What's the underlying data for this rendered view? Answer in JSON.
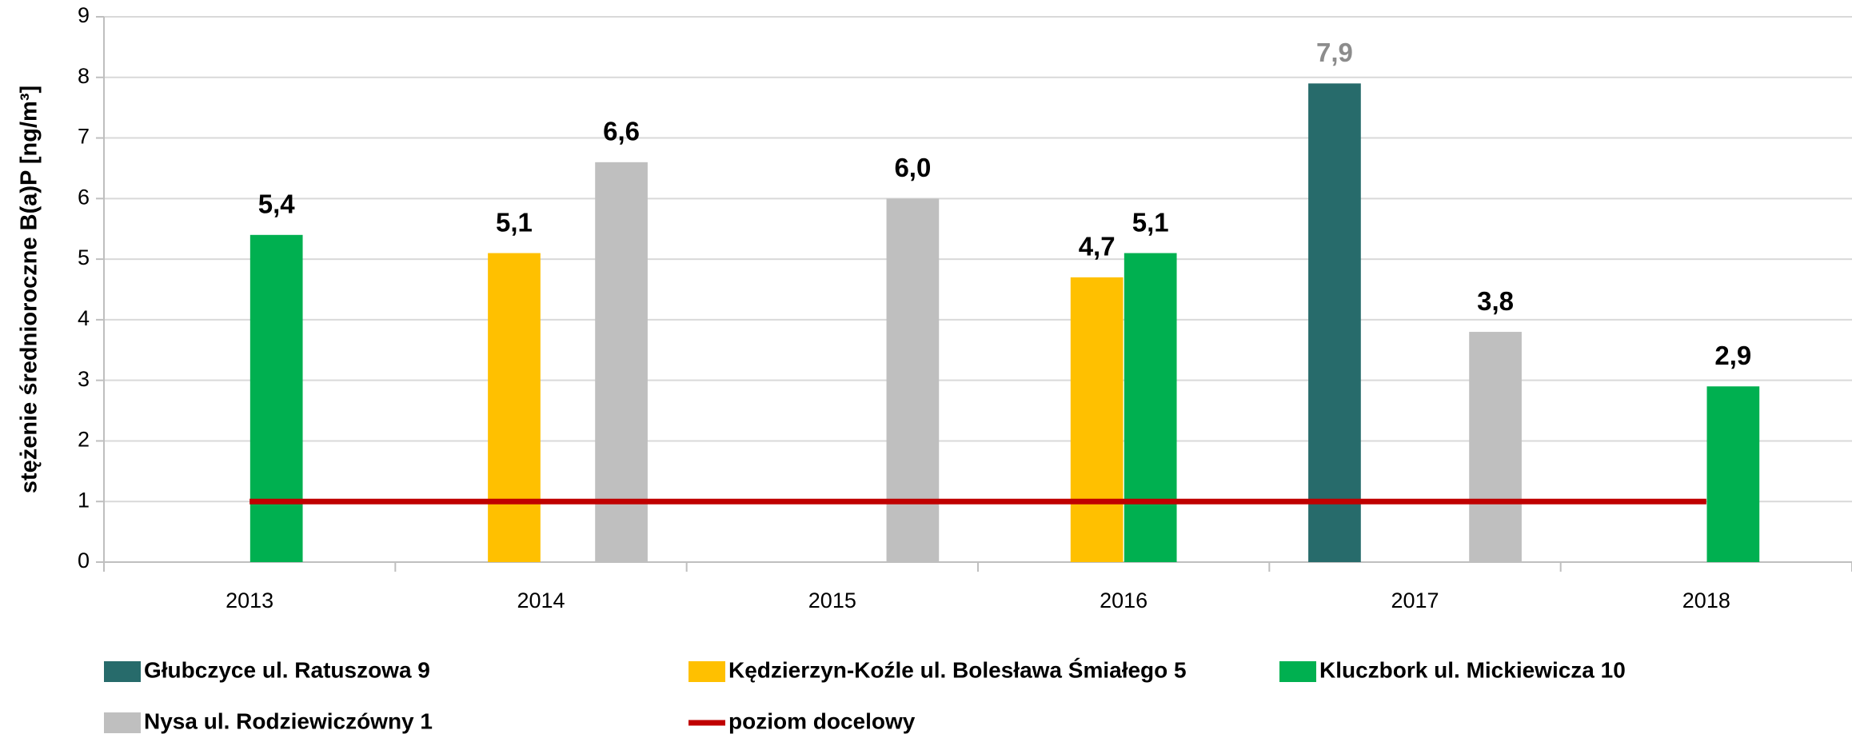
{
  "chart_data": {
    "type": "bar",
    "y_label": "stężenie średnioroczne B(a)P [ng/m³]",
    "categories": [
      "2013",
      "2014",
      "2015",
      "2016",
      "2017",
      "2018"
    ],
    "series": [
      {
        "name": "Głubczyce ul. Ratuszowa 9",
        "color": "#276b6b",
        "label_color": "#8c8c8c",
        "values": [
          null,
          null,
          null,
          null,
          7.9,
          null
        ],
        "value_labels": [
          null,
          null,
          null,
          null,
          "7,9",
          null
        ]
      },
      {
        "name": "Kędzierzyn-Koźle ul. Bolesława Śmiałego 5",
        "color": "#ffc000",
        "label_color": "#000000",
        "values": [
          null,
          5.1,
          null,
          4.7,
          null,
          null
        ],
        "value_labels": [
          null,
          "5,1",
          null,
          "4,7",
          null,
          null
        ]
      },
      {
        "name": "Kluczbork ul. Mickiewicza 10",
        "color": "#00b050",
        "label_color": "#000000",
        "values": [
          5.4,
          null,
          null,
          5.1,
          null,
          2.9
        ],
        "value_labels": [
          "5,4",
          null,
          null,
          "5,1",
          null,
          "2,9"
        ]
      },
      {
        "name": "Nysa ul. Rodziewiczówny 1",
        "color": "#bfbfbf",
        "label_color": "#000000",
        "values": [
          null,
          6.6,
          6.0,
          null,
          3.8,
          null
        ],
        "value_labels": [
          null,
          "6,6",
          "6,0",
          null,
          "3,8",
          null
        ]
      },
      {
        "name": "poziom docelowy",
        "type": "line",
        "color": "#c00000",
        "values": [
          1,
          1,
          1,
          1,
          1,
          1
        ]
      }
    ],
    "ylim": [
      0,
      9
    ],
    "yticks": [
      0,
      1,
      2,
      3,
      4,
      5,
      6,
      7,
      8,
      9
    ],
    "grid": true,
    "legend": "bottom"
  }
}
